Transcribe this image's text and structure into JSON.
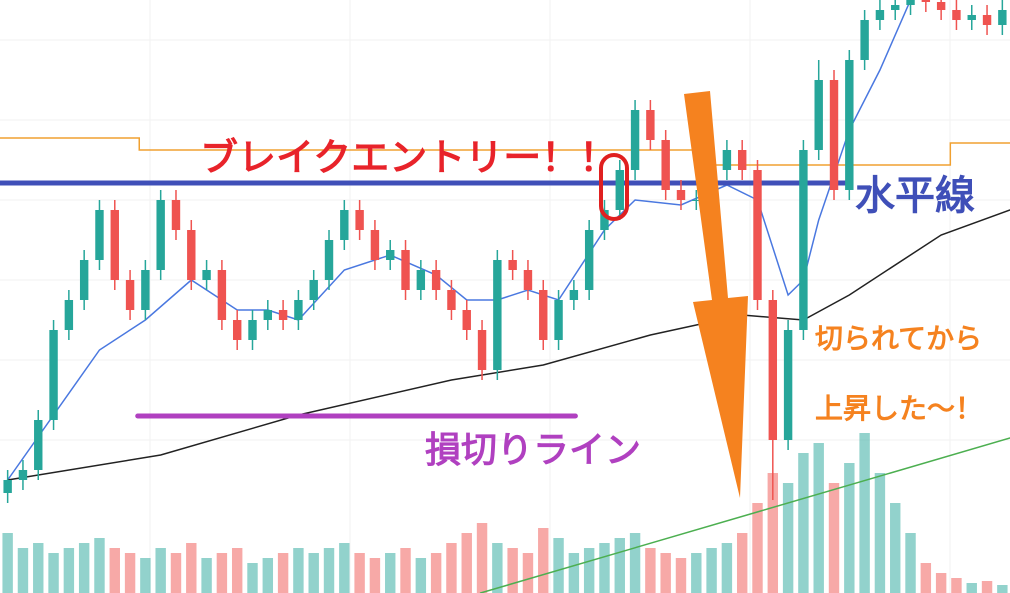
{
  "chart_data": {
    "type": "candlestick",
    "xlim": [
      -0.5,
      65.5
    ],
    "ylim": [
      0,
      593
    ],
    "up_color": "#26a69a",
    "down_color": "#ef5350",
    "open": [
      100,
      113,
      123,
      173,
      263,
      293,
      333,
      383,
      313,
      283,
      323,
      393,
      363,
      313,
      323,
      273,
      253,
      273,
      283,
      273,
      293,
      313,
      353,
      383,
      363,
      333,
      343,
      303,
      323,
      303,
      283,
      263,
      223,
      333,
      323,
      303,
      253,
      293,
      303,
      363,
      383,
      423,
      483,
      453,
      403,
      393,
      393,
      423,
      443,
      423,
      293,
      153,
      263,
      443,
      513,
      403,
      533,
      573,
      583,
      588,
      593,
      591,
      583,
      573,
      578,
      568
    ],
    "high": [
      123,
      133,
      183,
      273,
      303,
      343,
      393,
      393,
      323,
      333,
      403,
      403,
      373,
      333,
      333,
      283,
      283,
      293,
      293,
      303,
      323,
      363,
      393,
      393,
      373,
      353,
      353,
      333,
      333,
      313,
      293,
      273,
      343,
      343,
      333,
      313,
      303,
      313,
      373,
      393,
      433,
      493,
      493,
      463,
      413,
      403,
      433,
      453,
      453,
      433,
      303,
      273,
      453,
      533,
      523,
      543,
      583,
      593,
      598,
      603,
      603,
      601,
      593,
      588,
      588,
      593
    ],
    "low": [
      90,
      103,
      113,
      163,
      253,
      283,
      323,
      303,
      273,
      273,
      313,
      353,
      303,
      303,
      263,
      243,
      243,
      263,
      263,
      263,
      283,
      303,
      343,
      353,
      323,
      323,
      293,
      293,
      293,
      273,
      253,
      213,
      213,
      313,
      293,
      243,
      243,
      283,
      293,
      353,
      373,
      413,
      443,
      393,
      383,
      383,
      383,
      413,
      413,
      283,
      93,
      143,
      253,
      433,
      393,
      393,
      523,
      563,
      573,
      578,
      581,
      573,
      563,
      563,
      558,
      558
    ],
    "close": [
      113,
      123,
      173,
      263,
      293,
      333,
      383,
      313,
      283,
      323,
      393,
      363,
      313,
      323,
      273,
      253,
      273,
      283,
      273,
      293,
      313,
      353,
      383,
      363,
      333,
      343,
      303,
      323,
      303,
      283,
      263,
      223,
      333,
      323,
      303,
      253,
      293,
      303,
      363,
      383,
      423,
      483,
      453,
      403,
      393,
      393,
      423,
      443,
      423,
      293,
      153,
      263,
      443,
      513,
      403,
      533,
      573,
      583,
      588,
      593,
      591,
      583,
      573,
      578,
      568,
      583
    ],
    "volume": [
      60,
      45,
      50,
      40,
      45,
      50,
      55,
      45,
      40,
      35,
      45,
      40,
      50,
      35,
      40,
      45,
      30,
      35,
      40,
      45,
      40,
      45,
      50,
      40,
      35,
      40,
      45,
      35,
      40,
      50,
      60,
      70,
      50,
      45,
      40,
      65,
      55,
      40,
      45,
      50,
      55,
      60,
      45,
      40,
      35,
      40,
      45,
      50,
      60,
      90,
      120,
      110,
      140,
      150,
      110,
      130,
      160,
      120,
      90,
      60,
      30,
      20,
      15,
      10,
      12,
      8
    ],
    "lines": [
      {
        "color": "#f0a030",
        "x": [
          -0.5,
          8.6,
          8.6,
          45,
          45,
          61.6,
          61.6,
          65.5
        ],
        "values": [
          455,
          455,
          443,
          443,
          428,
          428,
          450,
          450
        ]
      },
      {
        "color": "#4a78e0",
        "x": [
          0,
          6,
          9,
          12,
          15,
          17,
          19,
          22,
          25,
          28,
          30,
          32,
          34,
          36,
          39,
          41,
          44,
          47,
          49,
          51,
          52,
          53,
          55,
          57,
          59
        ],
        "values": [
          113,
          243,
          273,
          313,
          283,
          283,
          273,
          323,
          338,
          318,
          293,
          293,
          303,
          293,
          363,
          393,
          388,
          408,
          393,
          298,
          313,
          373,
          463,
          523,
          593
        ]
      },
      {
        "color": "#222222",
        "x": [
          0,
          10,
          19,
          29,
          35,
          42,
          48,
          52,
          55,
          61,
          65.5
        ],
        "values": [
          113,
          138,
          178,
          213,
          228,
          258,
          278,
          273,
          298,
          358,
          383
        ]
      },
      {
        "color": "#4caf50",
        "x": [
          30.9,
          65.5
        ],
        "values": [
          0,
          155
        ]
      },
      {
        "color": "#3f4fb8",
        "x": [
          -0.5,
          55.1
        ],
        "values": [
          410,
          410
        ]
      },
      {
        "color": "#b040c0",
        "x": [
          8.5,
          37.1
        ],
        "values": [
          177,
          177
        ]
      }
    ],
    "annotations": [
      "ブレイクエントリー！！",
      "水平線",
      "損切りライン",
      "切られてから",
      "上昇した〜！"
    ]
  }
}
